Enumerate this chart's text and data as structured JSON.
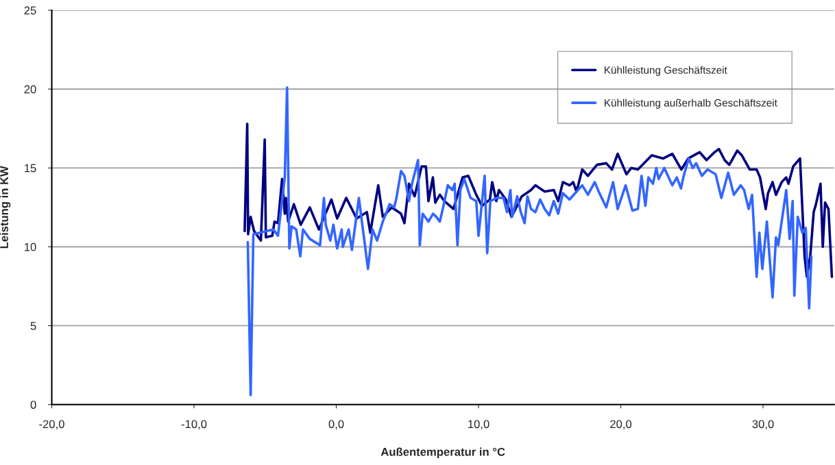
{
  "chart_data": {
    "type": "line",
    "xlabel": "Außentemperatur in °C",
    "ylabel": "Leistung in KW",
    "xlim": [
      -20,
      35
    ],
    "ylim": [
      0,
      25
    ],
    "xticks": [
      {
        "value": -20,
        "label": "-20,0"
      },
      {
        "value": -10,
        "label": "-10,0"
      },
      {
        "value": 0,
        "label": "0,0"
      },
      {
        "value": 10,
        "label": "10,0"
      },
      {
        "value": 20,
        "label": "20,0"
      },
      {
        "value": 30,
        "label": "30,0"
      }
    ],
    "yticks": [
      0,
      5,
      10,
      15,
      20,
      25
    ],
    "grid": "y",
    "legend": "top right",
    "marker": "none",
    "line_style": "solid",
    "series": [
      {
        "name": "Kühlleistung Geschäftszeit",
        "color": "#000080",
        "x": [
          -6.44,
          -6.26,
          -6.2,
          -6.02,
          -5.78,
          -5.3,
          -5.03,
          -4.95,
          -4.5,
          -4.34,
          -4.1,
          -3.81,
          -3.62,
          -3.54,
          -3.38,
          -2.98,
          -2.5,
          -1.86,
          -1.22,
          -0.34,
          0.06,
          0.7,
          1.43,
          2.15,
          2.39,
          2.95,
          3.27,
          3.9,
          4.55,
          4.79,
          5.11,
          5.51,
          6.0,
          6.3,
          6.48,
          6.79,
          6.96,
          7.28,
          7.6,
          8.24,
          8.88,
          9.28,
          9.84,
          10.24,
          10.8,
          10.96,
          11.25,
          11.44,
          11.92,
          12.32,
          13.04,
          13.69,
          14.0,
          14.65,
          15.29,
          15.6,
          15.93,
          16.4,
          16.65,
          16.89,
          17.29,
          17.69,
          18.33,
          18.98,
          19.38,
          19.78,
          20.4,
          20.74,
          21.2,
          22.18,
          22.98,
          23.62,
          24.26,
          24.74,
          25.54,
          26.03,
          26.59,
          26.9,
          27.3,
          27.63,
          28.19,
          28.51,
          29.07,
          29.55,
          29.79,
          30.19,
          30.35,
          30.67,
          30.91,
          31.31,
          31.63,
          31.79,
          32.12,
          32.6,
          32.92,
          33.08,
          33.32,
          33.56,
          33.72,
          34.04,
          34.2,
          34.36,
          34.6,
          34.84
        ],
        "values": [
          11.0,
          17.8,
          10.8,
          11.9,
          11.0,
          10.4,
          16.8,
          10.6,
          10.7,
          11.6,
          11.5,
          14.3,
          12.1,
          13.1,
          11.6,
          12.7,
          11.4,
          12.5,
          11.1,
          13.0,
          11.8,
          13.1,
          11.8,
          12.2,
          10.9,
          13.9,
          11.9,
          12.5,
          12.1,
          11.5,
          14.0,
          13.2,
          15.1,
          15.1,
          12.9,
          14.4,
          12.8,
          13.3,
          12.9,
          12.4,
          14.4,
          14.5,
          13.3,
          12.6,
          13.0,
          14.1,
          12.9,
          13.6,
          13.0,
          11.9,
          13.2,
          13.6,
          13.9,
          13.5,
          13.6,
          12.9,
          14.1,
          13.9,
          14.1,
          13.5,
          14.9,
          14.5,
          15.2,
          15.3,
          14.9,
          15.9,
          14.6,
          15.0,
          14.9,
          15.8,
          15.6,
          15.9,
          14.9,
          15.6,
          16.0,
          15.5,
          16.0,
          16.2,
          15.5,
          15.2,
          16.1,
          15.8,
          14.9,
          14.9,
          14.4,
          12.4,
          13.4,
          14.1,
          13.3,
          14.1,
          14.4,
          14.0,
          15.1,
          15.6,
          9.4,
          8.1,
          9.4,
          12.2,
          12.7,
          14.0,
          10.0,
          12.8,
          12.4,
          8.1
        ]
      },
      {
        "name": "Kühlleistung außerhalb Geschäftszeit",
        "color": "#3366ff",
        "x": [
          -6.22,
          -6.02,
          -5.83,
          -5.35,
          -4.42,
          -4.1,
          -3.62,
          -3.46,
          -3.3,
          -3.14,
          -2.82,
          -2.53,
          -2.34,
          -1.86,
          -1.14,
          -0.87,
          -0.74,
          -0.42,
          -0.2,
          0.06,
          0.38,
          0.46,
          0.87,
          1.1,
          1.59,
          1.83,
          2.23,
          2.55,
          2.87,
          3.27,
          3.75,
          4.07,
          4.23,
          4.55,
          4.79,
          5.11,
          5.35,
          5.75,
          5.87,
          6.07,
          6.48,
          6.8,
          7.03,
          7.28,
          7.51,
          7.84,
          8.16,
          8.32,
          8.52,
          8.72,
          9.0,
          9.44,
          9.84,
          10.0,
          10.43,
          10.61,
          10.83,
          11.28,
          11.76,
          12.0,
          12.24,
          12.36,
          12.72,
          12.97,
          13.24,
          13.44,
          13.69,
          14.0,
          14.33,
          14.65,
          14.97,
          15.29,
          15.6,
          15.93,
          16.4,
          16.89,
          17.29,
          17.69,
          18.17,
          18.5,
          18.98,
          19.46,
          19.78,
          20.34,
          20.82,
          21.2,
          21.46,
          21.73,
          21.94,
          22.26,
          22.5,
          22.66,
          23.06,
          23.62,
          23.94,
          24.23,
          24.42,
          24.78,
          25.06,
          25.3,
          25.7,
          26.1,
          26.67,
          27.07,
          27.55,
          27.95,
          28.43,
          28.67,
          28.99,
          29.23,
          29.55,
          29.74,
          29.95,
          30.27,
          30.67,
          30.91,
          31.07,
          31.63,
          31.87,
          32.08,
          32.2,
          32.44,
          32.76,
          33.0,
          33.24,
          33.4
        ],
        "values": [
          10.3,
          0.6,
          10.8,
          10.9,
          11.1,
          10.7,
          14.4,
          20.1,
          9.9,
          11.3,
          11.1,
          9.4,
          11.1,
          10.5,
          10.1,
          13.1,
          11.4,
          10.4,
          11.4,
          9.9,
          11.1,
          10.0,
          11.1,
          9.8,
          13.1,
          11.4,
          8.6,
          11.1,
          10.4,
          11.6,
          12.7,
          12.5,
          13.1,
          14.8,
          14.5,
          12.9,
          14.1,
          15.5,
          10.1,
          12.1,
          11.6,
          12.1,
          11.9,
          11.6,
          12.5,
          13.9,
          13.6,
          14.0,
          10.1,
          13.6,
          14.3,
          13.1,
          12.9,
          10.7,
          14.5,
          9.6,
          12.9,
          13.1,
          13.1,
          12.2,
          13.6,
          11.9,
          13.2,
          12.2,
          11.5,
          13.2,
          12.4,
          12.2,
          13.0,
          12.4,
          12.0,
          12.9,
          12.1,
          13.4,
          13.0,
          13.5,
          13.9,
          13.3,
          14.1,
          13.4,
          12.5,
          14.1,
          12.4,
          13.9,
          12.3,
          12.4,
          14.5,
          12.6,
          14.4,
          14.0,
          15.0,
          14.3,
          15.0,
          13.9,
          14.4,
          13.7,
          14.5,
          15.6,
          15.0,
          15.3,
          14.5,
          14.9,
          14.6,
          13.1,
          14.7,
          13.3,
          13.9,
          13.6,
          12.4,
          13.3,
          8.1,
          10.9,
          8.6,
          11.6,
          6.8,
          10.6,
          10.1,
          13.6,
          10.5,
          12.9,
          6.9,
          11.9,
          10.9,
          11.2,
          6.1,
          9.4
        ]
      }
    ]
  }
}
